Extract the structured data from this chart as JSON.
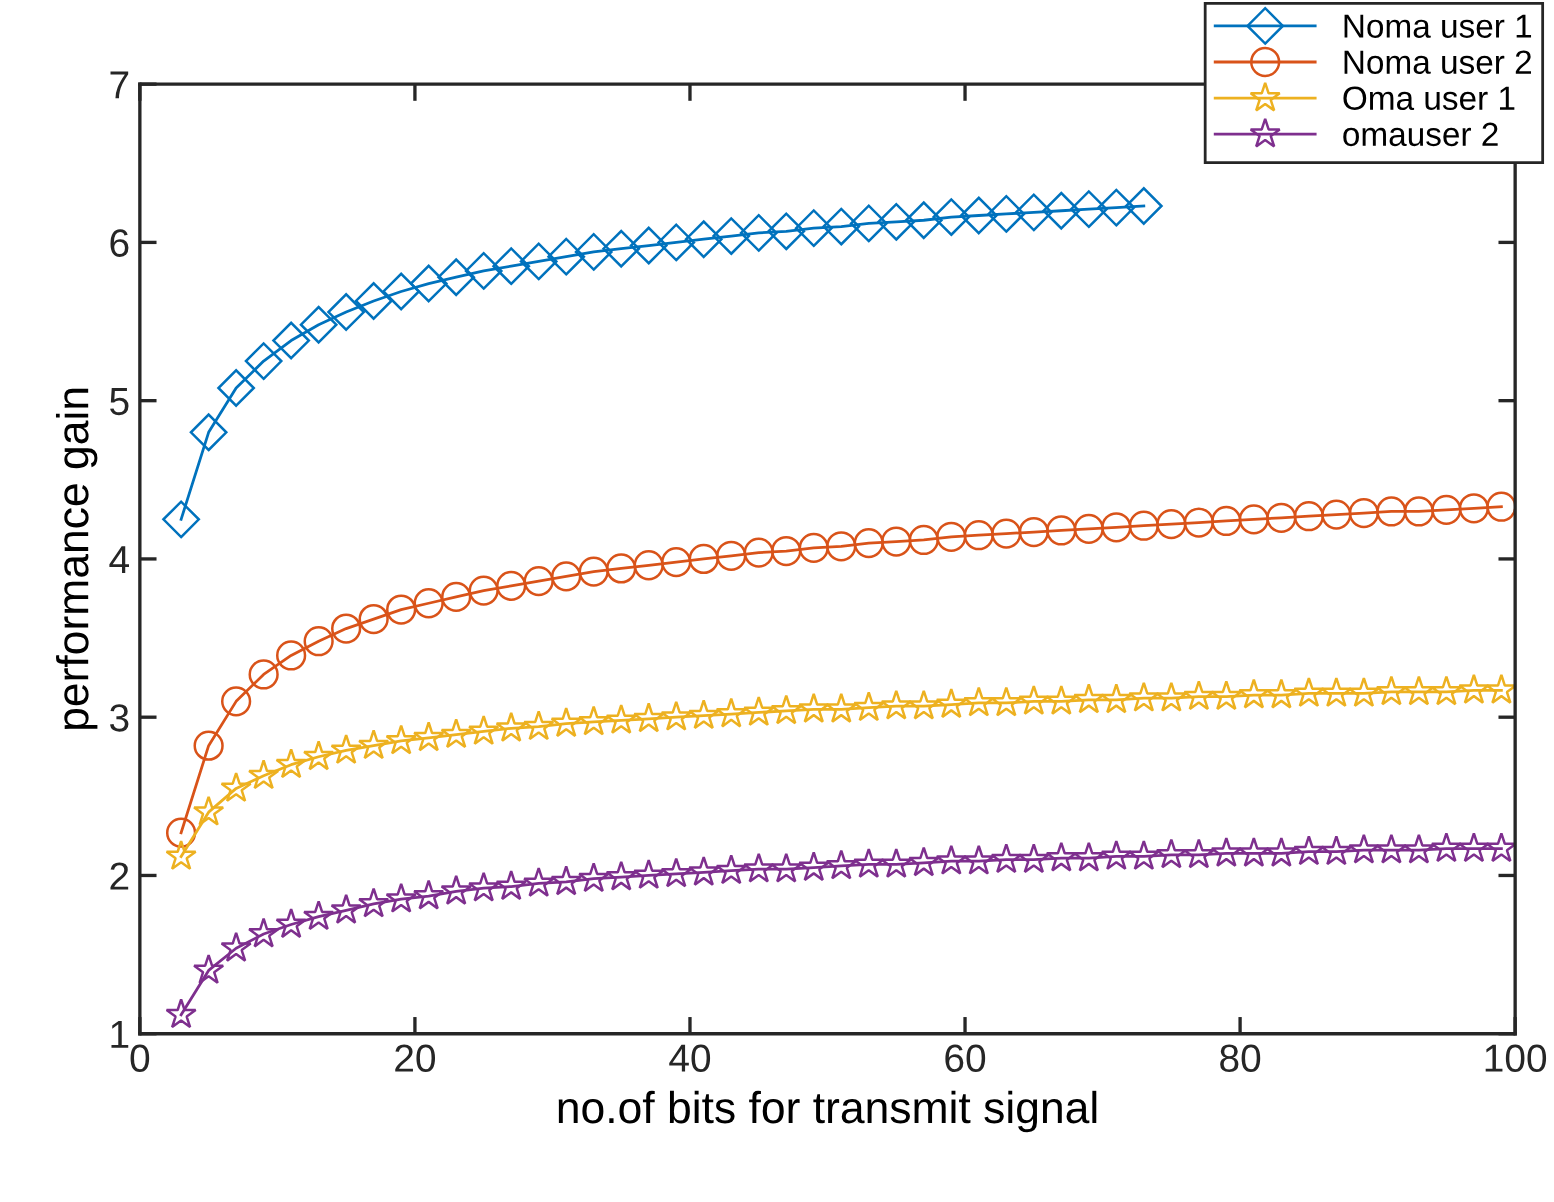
{
  "chart_data": {
    "type": "line",
    "xlabel": "no.of bits for transmit signal",
    "ylabel": "performance gain",
    "x": [
      3,
      5,
      7,
      9,
      11,
      13,
      15,
      17,
      19,
      21,
      23,
      25,
      27,
      29,
      31,
      33,
      35,
      37,
      39,
      41,
      43,
      45,
      47,
      49,
      51,
      53,
      55,
      57,
      59,
      61,
      63,
      65,
      67,
      69,
      71,
      73,
      75,
      77,
      79,
      81,
      83,
      85,
      87,
      89,
      91,
      93,
      95,
      97,
      99
    ],
    "xlim": [
      0,
      100
    ],
    "xticks": [
      0,
      20,
      40,
      60,
      80,
      100
    ],
    "ylim": [
      1,
      7
    ],
    "yticks": [
      1,
      2,
      3,
      4,
      5,
      6,
      7
    ],
    "grid": false,
    "legend": "top right",
    "line_style": "solid",
    "series": [
      {
        "name": "Noma user 1",
        "color": "#0072bd",
        "marker": "diamond",
        "values": [
          4.25,
          4.8,
          5.08,
          5.25,
          5.38,
          5.48,
          5.56,
          5.63,
          5.69,
          5.74,
          5.78,
          5.82,
          5.85,
          5.88,
          5.91,
          5.94,
          5.96,
          5.98,
          6.0,
          6.02,
          6.04,
          6.06,
          6.07,
          6.09,
          6.1,
          6.12,
          6.13,
          6.14,
          6.16,
          6.17,
          6.18,
          6.19,
          6.2,
          6.21,
          6.22,
          6.23,
          null,
          null,
          null,
          null,
          null,
          null,
          null,
          null,
          null,
          null,
          null,
          null,
          null
        ]
      },
      {
        "name": "Noma user 2",
        "color": "#d95319",
        "marker": "circle",
        "values": [
          2.27,
          2.82,
          3.1,
          3.27,
          3.39,
          3.48,
          3.56,
          3.62,
          3.68,
          3.72,
          3.76,
          3.8,
          3.83,
          3.86,
          3.89,
          3.92,
          3.94,
          3.96,
          3.98,
          4.0,
          4.02,
          4.04,
          4.05,
          4.07,
          4.08,
          4.1,
          4.11,
          4.12,
          4.14,
          4.15,
          4.16,
          4.17,
          4.18,
          4.19,
          4.2,
          4.21,
          4.22,
          4.23,
          4.24,
          4.25,
          4.26,
          4.27,
          4.28,
          4.29,
          4.3,
          4.3,
          4.31,
          4.32,
          4.33
        ]
      },
      {
        "name": "Oma user 1",
        "color": "#edb120",
        "marker": "star",
        "values": [
          2.12,
          2.4,
          2.55,
          2.63,
          2.7,
          2.75,
          2.79,
          2.82,
          2.85,
          2.87,
          2.89,
          2.91,
          2.93,
          2.94,
          2.96,
          2.97,
          2.98,
          2.99,
          3.0,
          3.01,
          3.02,
          3.03,
          3.04,
          3.05,
          3.05,
          3.06,
          3.07,
          3.07,
          3.08,
          3.09,
          3.09,
          3.1,
          3.1,
          3.11,
          3.11,
          3.12,
          3.12,
          3.13,
          3.13,
          3.14,
          3.14,
          3.15,
          3.15,
          3.15,
          3.16,
          3.16,
          3.16,
          3.17,
          3.17
        ]
      },
      {
        "name": "omauser 2",
        "color": "#7e2f8e",
        "marker": "star",
        "values": [
          1.12,
          1.4,
          1.54,
          1.63,
          1.69,
          1.74,
          1.78,
          1.82,
          1.85,
          1.87,
          1.9,
          1.92,
          1.93,
          1.95,
          1.96,
          1.98,
          1.99,
          2.0,
          2.01,
          2.02,
          2.03,
          2.04,
          2.04,
          2.05,
          2.06,
          2.07,
          2.07,
          2.08,
          2.09,
          2.09,
          2.1,
          2.1,
          2.11,
          2.11,
          2.12,
          2.12,
          2.13,
          2.13,
          2.14,
          2.14,
          2.14,
          2.15,
          2.15,
          2.16,
          2.16,
          2.16,
          2.17,
          2.17,
          2.17
        ]
      }
    ]
  }
}
